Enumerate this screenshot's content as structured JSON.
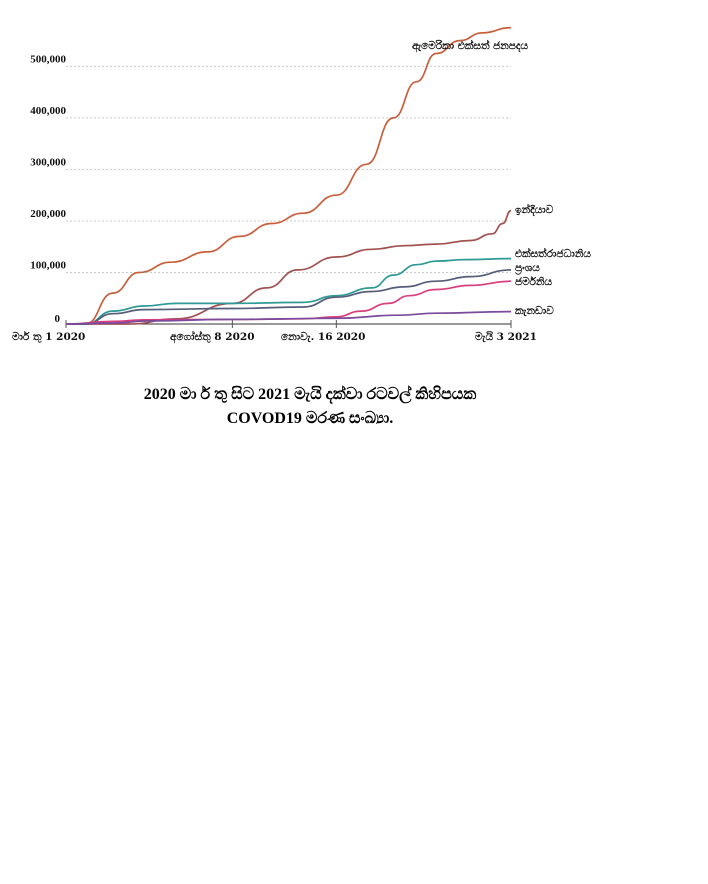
{
  "chart_data": {
    "type": "line",
    "x_categories": [
      "මාර් තු 1 2020",
      "අගෝස්තු 8 2020",
      "නොවැ. 16 2020",
      "මැයි 3 2021"
    ],
    "x_range": [
      "2020-03-01",
      "2021-05-03"
    ],
    "ylim": [
      0,
      590000
    ],
    "yticks": [
      0,
      100000,
      200000,
      300000,
      400000,
      500000
    ],
    "ytick_labels": [
      "0",
      "100,000",
      "200,000",
      "300,000",
      "400,000",
      "500,000"
    ],
    "grid": "horizontal dashed",
    "legend": "line-end labels",
    "series": [
      {
        "name": "ඇමෙරිකා එක්සත් ජනපදය",
        "color": "#c8603d",
        "x": [
          "2020-03-01",
          "2020-03-20",
          "2020-04-15",
          "2020-05-10",
          "2020-06-10",
          "2020-07-15",
          "2020-08-15",
          "2020-09-15",
          "2020-10-15",
          "2020-11-16",
          "2020-12-15",
          "2021-01-10",
          "2021-02-01",
          "2021-02-20",
          "2021-03-15",
          "2021-04-05",
          "2021-05-03"
        ],
        "y": [
          0,
          0,
          60000,
          100000,
          120000,
          140000,
          170000,
          195000,
          215000,
          250000,
          310000,
          400000,
          470000,
          525000,
          550000,
          565000,
          575000
        ]
      },
      {
        "name": "ඉන්දියාව",
        "color": "#a25151",
        "x": [
          "2020-03-01",
          "2020-05-01",
          "2020-06-15",
          "2020-08-08",
          "2020-09-10",
          "2020-10-10",
          "2020-11-16",
          "2020-12-20",
          "2021-01-20",
          "2021-02-20",
          "2021-03-25",
          "2021-04-15",
          "2021-04-25",
          "2021-05-03"
        ],
        "y": [
          0,
          0,
          10000,
          40000,
          70000,
          105000,
          130000,
          145000,
          152000,
          155000,
          162000,
          175000,
          195000,
          220000
        ]
      },
      {
        "name": "එක්සත්රාජධානිය",
        "color": "#2f9a96",
        "x": [
          "2020-03-01",
          "2020-03-20",
          "2020-04-15",
          "2020-05-15",
          "2020-06-15",
          "2020-08-08",
          "2020-10-15",
          "2020-11-16",
          "2020-12-20",
          "2021-01-10",
          "2021-02-01",
          "2021-02-20",
          "2021-03-20",
          "2021-05-03"
        ],
        "y": [
          0,
          0,
          25000,
          35000,
          40000,
          40000,
          42000,
          55000,
          70000,
          95000,
          115000,
          122000,
          125000,
          127000
        ]
      },
      {
        "name": "ප්‍රංශය",
        "color": "#565d7a",
        "x": [
          "2020-03-01",
          "2020-03-20",
          "2020-04-15",
          "2020-05-15",
          "2020-08-08",
          "2020-10-15",
          "2020-11-16",
          "2020-12-20",
          "2021-01-20",
          "2021-02-20",
          "2021-03-25",
          "2021-05-03"
        ],
        "y": [
          0,
          0,
          20000,
          28000,
          30000,
          33000,
          52000,
          63000,
          72000,
          83000,
          92000,
          105000
        ]
      },
      {
        "name": "ජර්මනිය",
        "color": "#d83f7e",
        "x": [
          "2020-03-01",
          "2020-04-15",
          "2020-05-15",
          "2020-08-08",
          "2020-10-15",
          "2020-11-16",
          "2020-12-10",
          "2021-01-05",
          "2021-01-25",
          "2021-02-20",
          "2021-03-25",
          "2021-05-03"
        ],
        "y": [
          0,
          5000,
          8000,
          9000,
          10000,
          14000,
          25000,
          40000,
          55000,
          67000,
          75000,
          83000
        ]
      },
      {
        "name": "කැනඩාව",
        "color": "#7a4a9c",
        "x": [
          "2020-03-01",
          "2020-04-15",
          "2020-05-20",
          "2020-08-08",
          "2020-11-16",
          "2021-01-15",
          "2021-02-20",
          "2021-05-03"
        ],
        "y": [
          0,
          2000,
          6000,
          9000,
          11000,
          17000,
          21000,
          24000
        ]
      }
    ]
  },
  "caption": {
    "line1": "2020 මා ර් තු  සිට 2021 මැයි දක්වා රටවල්  කිහිපයක",
    "line2": "COVOD19 මරණ සංඛ්‍යා."
  }
}
